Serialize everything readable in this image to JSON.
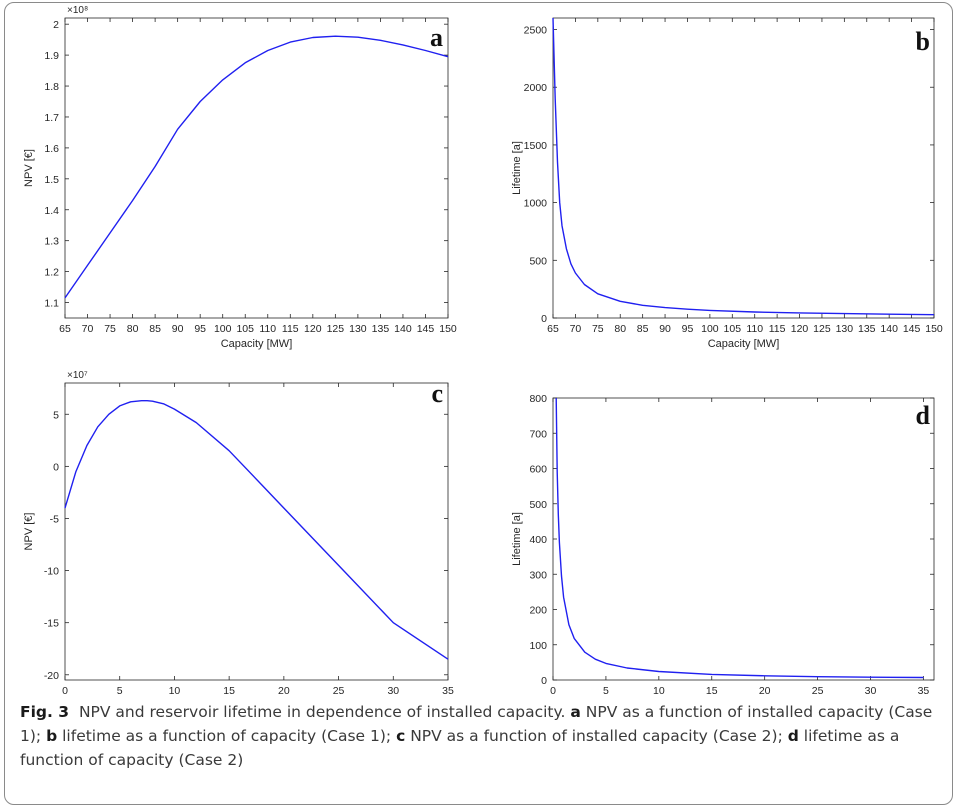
{
  "caption": {
    "fig_label": "Fig. 3",
    "text": "NPV and reservoir lifetime in dependence of installed capacity.",
    "parts": [
      {
        "letter": "a",
        "text": "NPV as a function of installed capacity (Case 1);"
      },
      {
        "letter": "b",
        "text": "lifetime as a function of capacity (Case 1);"
      },
      {
        "letter": "c",
        "text": "NPV as a function of installed capacity (Case 2);"
      },
      {
        "letter": "d",
        "text": "lifetime as a function of capacity (Case 2)"
      }
    ]
  },
  "chart_data": [
    {
      "panel": "a",
      "type": "line",
      "xlabel": "Capacity [MW]",
      "ylabel": "NPV [€]",
      "y_multiplier": "×10⁸",
      "xlim": [
        65,
        150
      ],
      "ylim": [
        1.05,
        2.02
      ],
      "xticks": [
        65,
        70,
        75,
        80,
        85,
        90,
        95,
        100,
        105,
        110,
        115,
        120,
        125,
        130,
        135,
        140,
        145,
        150
      ],
      "yticks": [
        1.1,
        1.2,
        1.3,
        1.4,
        1.5,
        1.6,
        1.7,
        1.8,
        1.9,
        2
      ],
      "yticklabels": [
        "1.1",
        "1.2",
        "1.3",
        "1.4",
        "1.5",
        "1.6",
        "1.7",
        "1.8",
        "1.9",
        "2"
      ],
      "line_color": "#2020f0",
      "series": [
        {
          "x": [
            65,
            70,
            75,
            80,
            85,
            90,
            95,
            100,
            105,
            110,
            115,
            120,
            125,
            130,
            135,
            140,
            145,
            150
          ],
          "y": [
            1.115,
            1.22,
            1.325,
            1.43,
            1.54,
            1.66,
            1.75,
            1.82,
            1.875,
            1.915,
            1.942,
            1.957,
            1.961,
            1.958,
            1.948,
            1.933,
            1.915,
            1.895
          ]
        }
      ]
    },
    {
      "panel": "b",
      "type": "line",
      "xlabel": "Capacity [MW]",
      "ylabel": "Lifetime [a]",
      "xlim": [
        65,
        150
      ],
      "ylim": [
        0,
        2600
      ],
      "xticks": [
        65,
        70,
        75,
        80,
        85,
        90,
        95,
        100,
        105,
        110,
        115,
        120,
        125,
        130,
        135,
        140,
        145,
        150
      ],
      "yticks": [
        0,
        500,
        1000,
        1500,
        2000,
        2500
      ],
      "yticklabels": [
        "0",
        "500",
        "1000",
        "1500",
        "2000",
        "2500"
      ],
      "line_color": "#2020f0",
      "series": [
        {
          "x": [
            65,
            65.5,
            66,
            66.5,
            67,
            68,
            69,
            70,
            72,
            75,
            80,
            85,
            90,
            95,
            100,
            110,
            120,
            130,
            140,
            150
          ],
          "y": [
            2600,
            1900,
            1350,
            1000,
            800,
            600,
            470,
            390,
            290,
            210,
            145,
            110,
            90,
            76,
            66,
            52,
            44,
            38,
            33,
            29
          ]
        }
      ]
    },
    {
      "panel": "c",
      "type": "line",
      "xlabel": "Capacity [MW]",
      "ylabel": "NPV [€]",
      "y_multiplier": "×10⁷",
      "xlim": [
        0,
        35
      ],
      "ylim": [
        -20.5,
        8
      ],
      "xticks": [
        0,
        5,
        10,
        15,
        20,
        25,
        30,
        35
      ],
      "yticks": [
        -20,
        -15,
        -10,
        -5,
        0,
        5
      ],
      "yticklabels": [
        "-20",
        "-15",
        "-10",
        "-5",
        "0",
        "5"
      ],
      "line_color": "#2020f0",
      "series": [
        {
          "x": [
            0,
            1,
            2,
            3,
            4,
            5,
            6,
            7,
            7.5,
            8,
            9,
            10,
            12,
            15,
            18,
            20,
            25,
            30,
            35
          ],
          "y": [
            -4,
            -0.5,
            2,
            3.8,
            5,
            5.8,
            6.2,
            6.3,
            6.3,
            6.25,
            6,
            5.5,
            4.2,
            1.5,
            -1.8,
            -4,
            -9.5,
            -15,
            -18.5
          ]
        }
      ]
    },
    {
      "panel": "d",
      "type": "line",
      "xlabel": "Capacity [MW]",
      "ylabel": "Lifetime [a]",
      "xlim": [
        0,
        36
      ],
      "ylim": [
        0,
        800
      ],
      "xticks": [
        0,
        5,
        10,
        15,
        20,
        25,
        30,
        35
      ],
      "yticks": [
        0,
        100,
        200,
        300,
        400,
        500,
        600,
        700,
        800
      ],
      "yticklabels": [
        "0",
        "100",
        "200",
        "300",
        "400",
        "500",
        "600",
        "700",
        "800"
      ],
      "line_color": "#2020f0",
      "series": [
        {
          "x": [
            0.3,
            0.4,
            0.5,
            0.6,
            0.8,
            1,
            1.5,
            2,
            3,
            4,
            5,
            7,
            10,
            15,
            20,
            25,
            30,
            35
          ],
          "y": [
            800,
            590,
            470,
            390,
            295,
            235,
            157,
            118,
            79,
            59,
            47,
            34,
            24,
            16,
            12,
            9.5,
            8,
            7
          ]
        }
      ]
    }
  ]
}
